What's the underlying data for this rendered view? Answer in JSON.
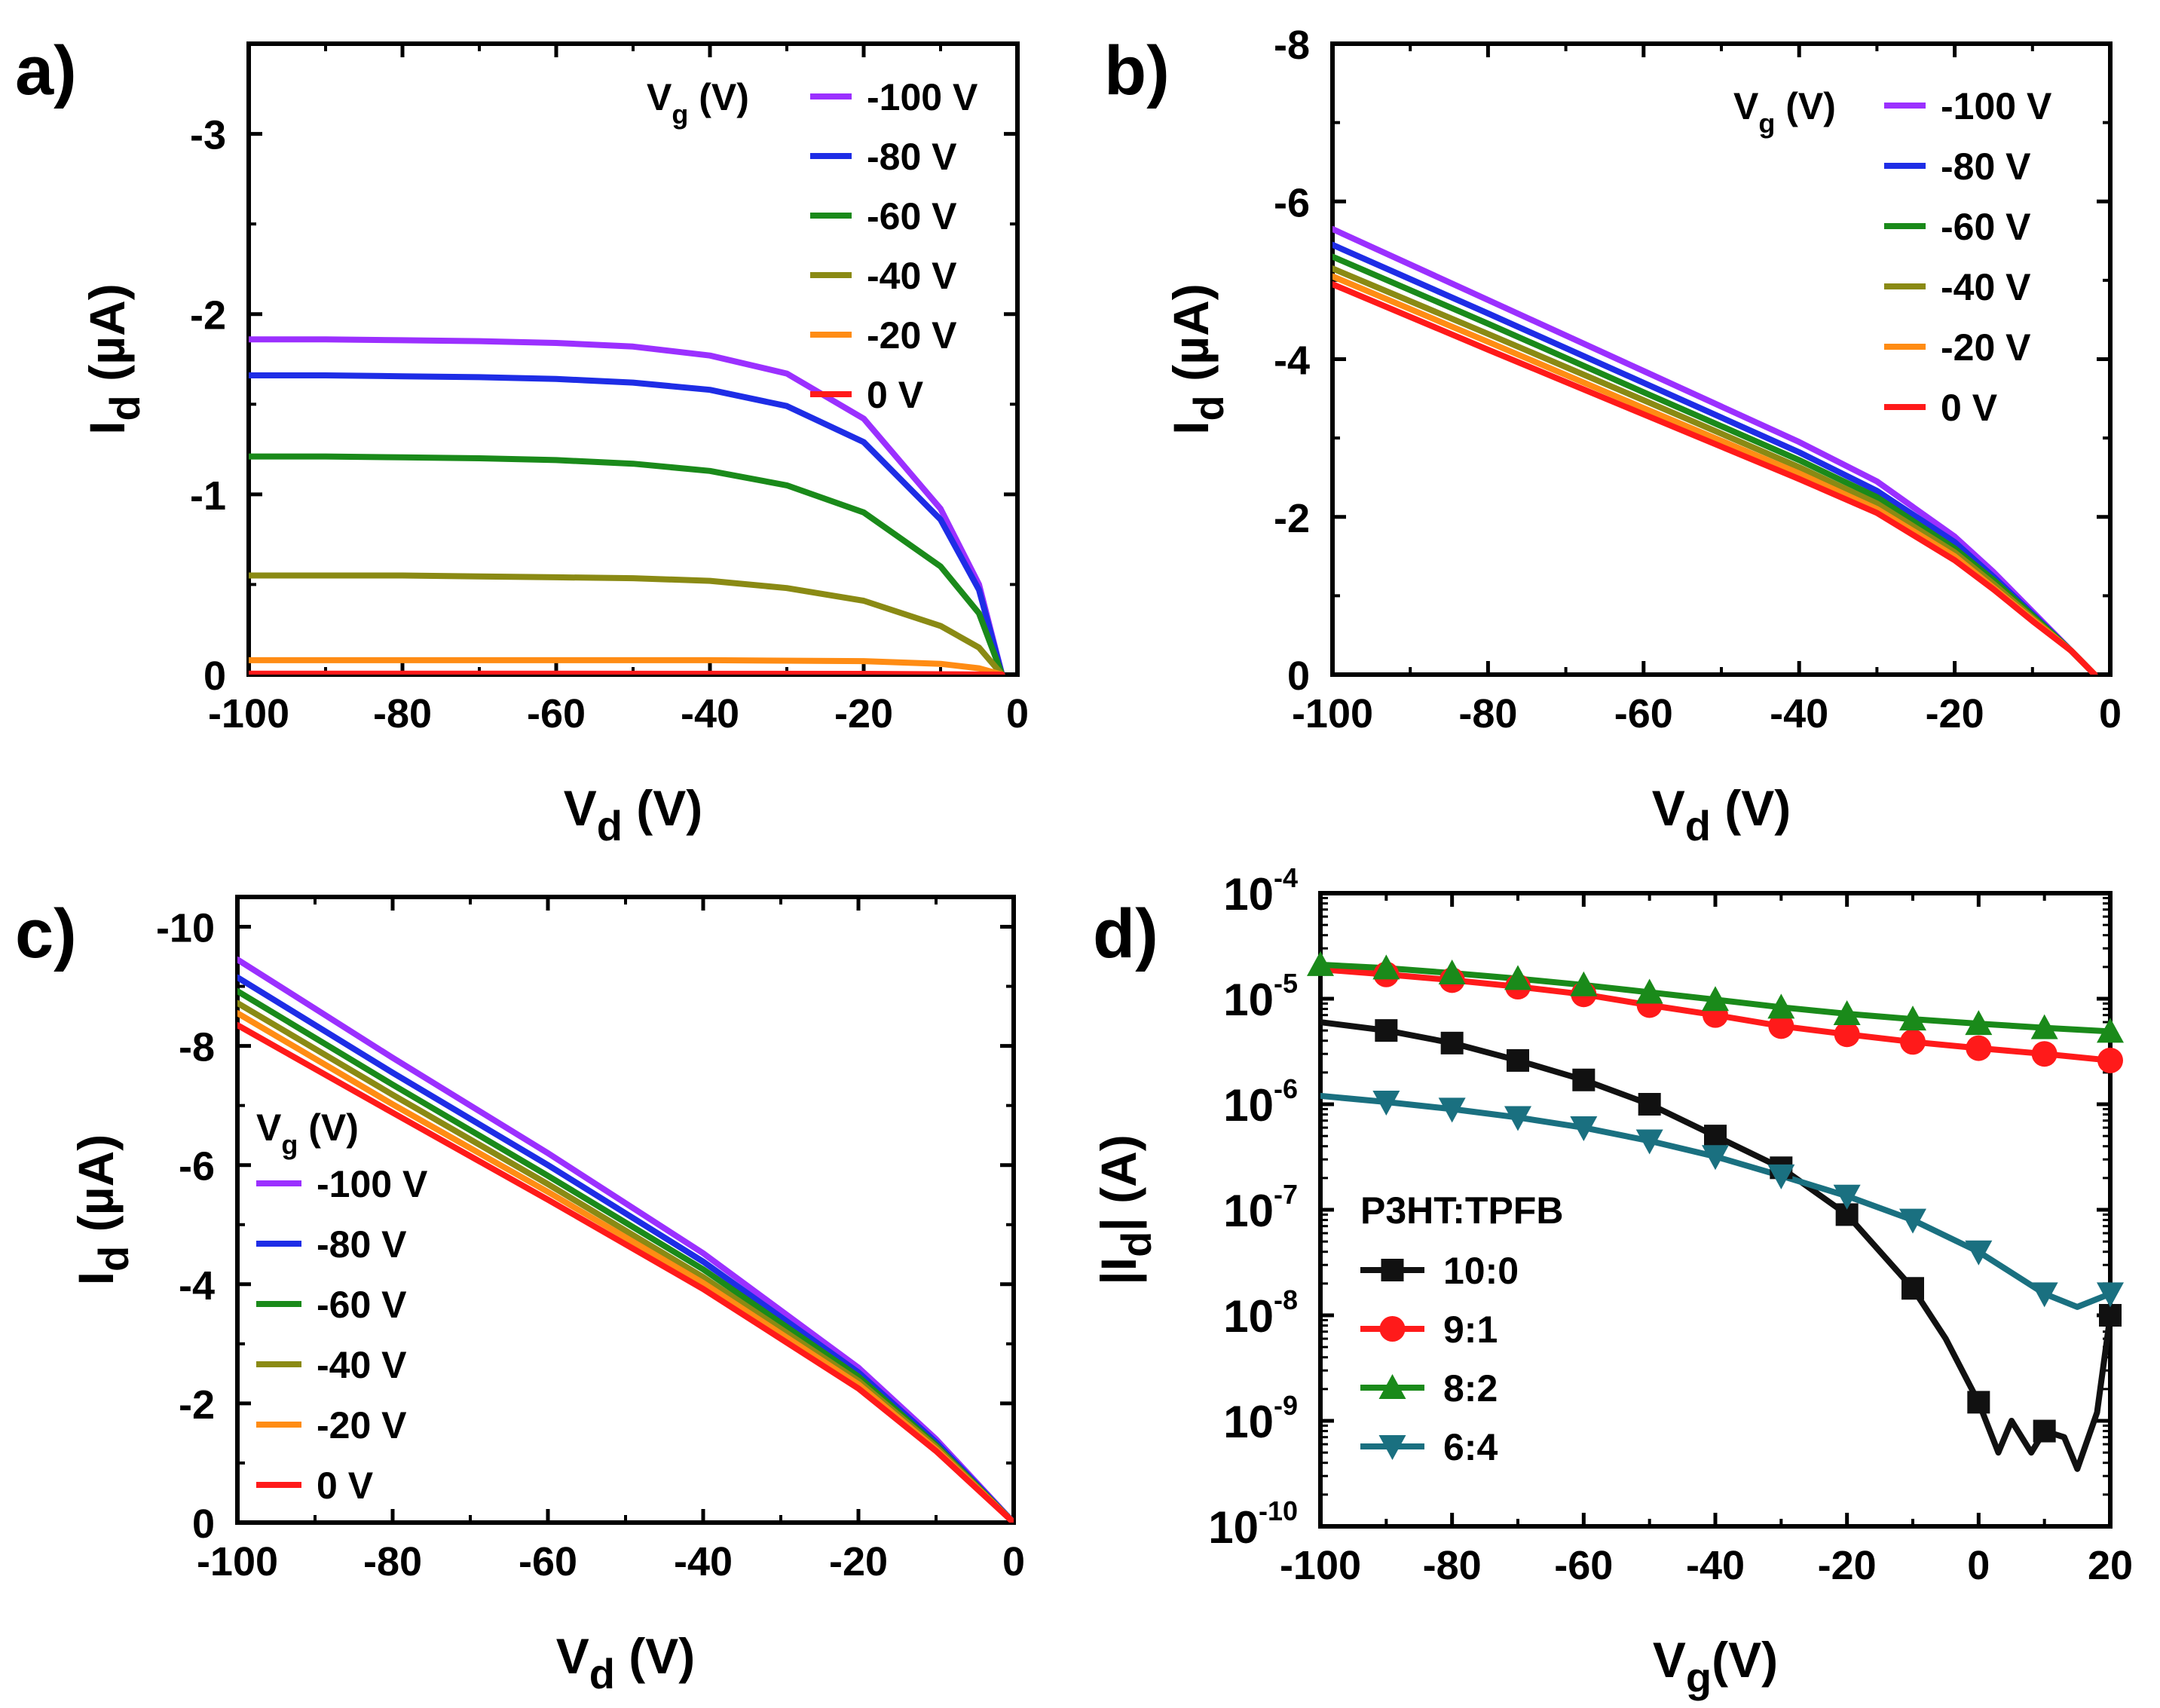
{
  "chart_data": [
    {
      "panel": "a)",
      "type": "line",
      "xlabel": {
        "main": "V",
        "sub": "d",
        "unit": " (V)"
      },
      "ylabel": {
        "main": "I",
        "sub": "d",
        "unit": " (µA)"
      },
      "xlim": [
        -100,
        0
      ],
      "ylim": [
        0,
        -3.5
      ],
      "xticks": [
        -100,
        -80,
        -60,
        -40,
        -20,
        0
      ],
      "xtick_labels": [
        "-100",
        "-80",
        "-60",
        "-40",
        "-20",
        "0"
      ],
      "yticks": [
        0,
        -1,
        -2,
        -3
      ],
      "ytick_labels": [
        "0",
        "-1",
        "-2",
        "-3"
      ],
      "legend": {
        "title_main": "V",
        "title_sub": "g",
        "title_unit": " (V)",
        "position": "top-right"
      },
      "series": [
        {
          "name": "-100 V",
          "color": "#9b30ff",
          "x": [
            -100,
            -90,
            -80,
            -70,
            -60,
            -50,
            -40,
            -30,
            -20,
            -10,
            -5,
            -2
          ],
          "y": [
            -1.86,
            -1.86,
            -1.855,
            -1.85,
            -1.84,
            -1.82,
            -1.77,
            -1.67,
            -1.42,
            -0.92,
            -0.5,
            0
          ]
        },
        {
          "name": "-80 V",
          "color": "#1e2de6",
          "x": [
            -100,
            -90,
            -80,
            -70,
            -60,
            -50,
            -40,
            -30,
            -20,
            -10,
            -5,
            -2
          ],
          "y": [
            -1.66,
            -1.66,
            -1.655,
            -1.65,
            -1.64,
            -1.62,
            -1.58,
            -1.49,
            -1.29,
            -0.86,
            -0.47,
            0
          ]
        },
        {
          "name": "-60 V",
          "color": "#1a8a1a",
          "x": [
            -100,
            -90,
            -80,
            -70,
            -60,
            -50,
            -40,
            -30,
            -20,
            -10,
            -5,
            -2
          ],
          "y": [
            -1.21,
            -1.21,
            -1.205,
            -1.2,
            -1.19,
            -1.17,
            -1.13,
            -1.05,
            -0.9,
            -0.6,
            -0.34,
            0
          ]
        },
        {
          "name": "-40 V",
          "color": "#8a8a14",
          "x": [
            -100,
            -90,
            -80,
            -70,
            -60,
            -50,
            -40,
            -30,
            -20,
            -10,
            -5,
            -2
          ],
          "y": [
            -0.55,
            -0.55,
            -0.55,
            -0.545,
            -0.54,
            -0.535,
            -0.52,
            -0.48,
            -0.41,
            -0.27,
            -0.15,
            0
          ]
        },
        {
          "name": "-20 V",
          "color": "#ff8c14",
          "x": [
            -100,
            -80,
            -60,
            -40,
            -20,
            -10,
            -5,
            -2
          ],
          "y": [
            -0.08,
            -0.08,
            -0.08,
            -0.08,
            -0.075,
            -0.06,
            -0.035,
            0
          ]
        },
        {
          "name": "0 V",
          "color": "#ff1a1a",
          "x": [
            -100,
            -60,
            -20,
            -2
          ],
          "y": [
            -0.005,
            -0.005,
            -0.004,
            0
          ]
        }
      ]
    },
    {
      "panel": "b)",
      "type": "line",
      "xlabel": {
        "main": "V",
        "sub": "d",
        "unit": " (V)"
      },
      "ylabel": {
        "main": "I",
        "sub": "d",
        "unit": " (µA)"
      },
      "xlim": [
        -100,
        0
      ],
      "ylim": [
        0,
        -8
      ],
      "xticks": [
        -100,
        -80,
        -60,
        -40,
        -20,
        0
      ],
      "xtick_labels": [
        "-100",
        "-80",
        "-60",
        "-40",
        "-20",
        "0"
      ],
      "yticks": [
        0,
        -2,
        -4,
        -6,
        -8
      ],
      "ytick_labels": [
        "0",
        "-2",
        "-4",
        "-6",
        "-8"
      ],
      "legend": {
        "title_main": "V",
        "title_sub": "g",
        "title_unit": " (V)",
        "position": "top-right"
      },
      "series": [
        {
          "name": "-100 V",
          "color": "#9b30ff",
          "x": [
            -100,
            -80,
            -60,
            -40,
            -30,
            -20,
            -15,
            -10,
            -5,
            -2
          ],
          "y": [
            -5.65,
            -4.75,
            -3.85,
            -2.95,
            -2.45,
            -1.75,
            -1.3,
            -0.8,
            -0.3,
            0
          ]
        },
        {
          "name": "-80 V",
          "color": "#1e2de6",
          "x": [
            -100,
            -80,
            -60,
            -40,
            -30,
            -20,
            -15,
            -10,
            -5,
            -2
          ],
          "y": [
            -5.45,
            -4.58,
            -3.7,
            -2.82,
            -2.33,
            -1.68,
            -1.24,
            -0.77,
            -0.3,
            0
          ]
        },
        {
          "name": "-60 V",
          "color": "#1a8a1a",
          "x": [
            -100,
            -80,
            -60,
            -40,
            -30,
            -20,
            -15,
            -10,
            -5,
            -2
          ],
          "y": [
            -5.3,
            -4.45,
            -3.58,
            -2.72,
            -2.25,
            -1.6,
            -1.2,
            -0.75,
            -0.3,
            0
          ]
        },
        {
          "name": "-40 V",
          "color": "#8a8a14",
          "x": [
            -100,
            -80,
            -60,
            -40,
            -30,
            -20,
            -15,
            -10,
            -5,
            -2
          ],
          "y": [
            -5.15,
            -4.32,
            -3.48,
            -2.63,
            -2.17,
            -1.55,
            -1.15,
            -0.72,
            -0.3,
            0
          ]
        },
        {
          "name": "-20 V",
          "color": "#ff8c14",
          "x": [
            -100,
            -80,
            -60,
            -40,
            -30,
            -20,
            -15,
            -10,
            -5,
            -2
          ],
          "y": [
            -5.05,
            -4.22,
            -3.38,
            -2.55,
            -2.1,
            -1.5,
            -1.1,
            -0.7,
            -0.3,
            0
          ]
        },
        {
          "name": "0 V",
          "color": "#ff1a1a",
          "x": [
            -100,
            -80,
            -60,
            -40,
            -30,
            -20,
            -15,
            -10,
            -5,
            -2
          ],
          "y": [
            -4.95,
            -4.12,
            -3.3,
            -2.48,
            -2.05,
            -1.45,
            -1.08,
            -0.68,
            -0.3,
            0
          ]
        }
      ]
    },
    {
      "panel": "c)",
      "type": "line",
      "xlabel": {
        "main": "V",
        "sub": "d",
        "unit": " (V)"
      },
      "ylabel": {
        "main": "I",
        "sub": "d",
        "unit": " (µA)"
      },
      "xlim": [
        -100,
        0
      ],
      "ylim": [
        0,
        -10.5
      ],
      "xticks": [
        -100,
        -80,
        -60,
        -40,
        -20,
        0
      ],
      "xtick_labels": [
        "-100",
        "-80",
        "-60",
        "-40",
        "-20",
        "0"
      ],
      "yticks": [
        0,
        -2,
        -4,
        -6,
        -8,
        -10
      ],
      "ytick_labels": [
        "0",
        "-2",
        "-4",
        "-6",
        "-8",
        "-10"
      ],
      "legend": {
        "title_main": "V",
        "title_sub": "g",
        "title_unit": " (V)",
        "position": "middle-left"
      },
      "series": [
        {
          "name": "-100 V",
          "color": "#9b30ff",
          "x": [
            -100,
            -80,
            -60,
            -40,
            -20,
            -10,
            0
          ],
          "y": [
            -9.45,
            -7.8,
            -6.2,
            -4.52,
            -2.6,
            -1.4,
            0
          ]
        },
        {
          "name": "-80 V",
          "color": "#1e2de6",
          "x": [
            -100,
            -80,
            -60,
            -40,
            -20,
            -10,
            0
          ],
          "y": [
            -9.15,
            -7.55,
            -6.0,
            -4.38,
            -2.52,
            -1.35,
            0
          ]
        },
        {
          "name": "-60 V",
          "color": "#1a8a1a",
          "x": [
            -100,
            -80,
            -60,
            -40,
            -20,
            -10,
            0
          ],
          "y": [
            -8.92,
            -7.35,
            -5.82,
            -4.25,
            -2.45,
            -1.3,
            0
          ]
        },
        {
          "name": "-40 V",
          "color": "#8a8a14",
          "x": [
            -100,
            -80,
            -60,
            -40,
            -20,
            -10,
            0
          ],
          "y": [
            -8.72,
            -7.18,
            -5.68,
            -4.12,
            -2.38,
            -1.27,
            0
          ]
        },
        {
          "name": "-20 V",
          "color": "#ff8c14",
          "x": [
            -100,
            -80,
            -60,
            -40,
            -20,
            -10,
            0
          ],
          "y": [
            -8.55,
            -7.02,
            -5.55,
            -4.02,
            -2.32,
            -1.23,
            0
          ]
        },
        {
          "name": "0 V",
          "color": "#ff1a1a",
          "x": [
            -100,
            -80,
            -60,
            -40,
            -20,
            -10,
            0
          ],
          "y": [
            -8.35,
            -6.88,
            -5.42,
            -3.92,
            -2.25,
            -1.2,
            0
          ]
        }
      ]
    },
    {
      "panel": "d)",
      "type": "line",
      "scale_y": "log",
      "xlabel": {
        "main": "V",
        "sub": "g",
        "unit": "(V)"
      },
      "ylabel": {
        "main": "|I",
        "sub": "d",
        "unit": "| (A)"
      },
      "xlim": [
        -100,
        20
      ],
      "ylim_exp": [
        -10,
        -4
      ],
      "xticks": [
        -100,
        -80,
        -60,
        -40,
        -20,
        0,
        20
      ],
      "xtick_labels": [
        "-100",
        "-80",
        "-60",
        "-40",
        "-20",
        "0",
        "20"
      ],
      "yticks_exp": [
        -10,
        -9,
        -8,
        -7,
        -6,
        -5,
        -4
      ],
      "ytick_base": "10",
      "ytick_exponents": [
        "-10",
        "-9",
        "-8",
        "-7",
        "-6",
        "-5",
        "-4"
      ],
      "legend": {
        "title": "P3HT:TPFB",
        "position": "bottom-left"
      },
      "series": [
        {
          "name": "10:0",
          "color": "#111111",
          "marker": "square",
          "x": [
            -100,
            -90,
            -80,
            -70,
            -60,
            -50,
            -40,
            -30,
            -20,
            -10,
            -5,
            0,
            3,
            5,
            8,
            10,
            13,
            15,
            18,
            20
          ],
          "y": [
            6e-06,
            5e-06,
            3.8e-06,
            2.6e-06,
            1.7e-06,
            1e-06,
            5e-07,
            2.5e-07,
            9e-08,
            1.8e-08,
            6e-09,
            1.5e-09,
            5e-10,
            1e-09,
            5e-10,
            8e-10,
            7e-10,
            3.5e-10,
            1.2e-09,
            1e-08
          ],
          "marker_x": [
            -90,
            -80,
            -70,
            -60,
            -50,
            -40,
            -30,
            -20,
            -10,
            0,
            10,
            20
          ],
          "marker_y": [
            5e-06,
            3.8e-06,
            2.6e-06,
            1.7e-06,
            1e-06,
            5e-07,
            2.5e-07,
            9e-08,
            1.8e-08,
            1.5e-09,
            8e-10,
            1e-08
          ]
        },
        {
          "name": "9:1",
          "color": "#ff1a1a",
          "marker": "circle",
          "x": [
            -100,
            -90,
            -80,
            -70,
            -60,
            -50,
            -40,
            -30,
            -20,
            -10,
            0,
            10,
            20
          ],
          "y": [
            1.9e-05,
            1.7e-05,
            1.5e-05,
            1.3e-05,
            1.1e-05,
            8.7e-06,
            7e-06,
            5.5e-06,
            4.6e-06,
            3.9e-06,
            3.4e-06,
            3e-06,
            2.6e-06
          ],
          "marker_x": [
            -90,
            -80,
            -70,
            -60,
            -50,
            -40,
            -30,
            -20,
            -10,
            0,
            10,
            20
          ],
          "marker_y": [
            1.7e-05,
            1.5e-05,
            1.3e-05,
            1.1e-05,
            8.7e-06,
            7e-06,
            5.5e-06,
            4.6e-06,
            3.9e-06,
            3.4e-06,
            3e-06,
            2.6e-06
          ]
        },
        {
          "name": "8:2",
          "color": "#1a8a1a",
          "marker": "triangle-up",
          "x": [
            -100,
            -90,
            -80,
            -70,
            -60,
            -50,
            -40,
            -30,
            -20,
            -10,
            0,
            10,
            20
          ],
          "y": [
            2.1e-05,
            1.95e-05,
            1.75e-05,
            1.55e-05,
            1.35e-05,
            1.15e-05,
            9.8e-06,
            8.3e-06,
            7.2e-06,
            6.4e-06,
            5.8e-06,
            5.3e-06,
            4.9e-06
          ],
          "marker_x": [
            -100,
            -90,
            -80,
            -70,
            -60,
            -50,
            -40,
            -30,
            -20,
            -10,
            0,
            10,
            20
          ],
          "marker_y": [
            2.1e-05,
            1.95e-05,
            1.75e-05,
            1.55e-05,
            1.35e-05,
            1.15e-05,
            9.8e-06,
            8.3e-06,
            7.2e-06,
            6.4e-06,
            5.8e-06,
            5.3e-06,
            4.9e-06
          ]
        },
        {
          "name": "6:4",
          "color": "#1a7080",
          "marker": "triangle-down",
          "x": [
            -100,
            -90,
            -80,
            -70,
            -60,
            -50,
            -40,
            -30,
            -20,
            -10,
            0,
            10,
            15,
            20
          ],
          "y": [
            1.2e-06,
            1.05e-06,
            9e-07,
            7.5e-07,
            6e-07,
            4.5e-07,
            3.2e-07,
            2.1e-07,
            1.35e-07,
            8e-08,
            4e-08,
            1.6e-08,
            1.2e-08,
            1.6e-08
          ],
          "marker_x": [
            -90,
            -80,
            -70,
            -60,
            -50,
            -40,
            -30,
            -20,
            -10,
            0,
            10,
            20
          ],
          "marker_y": [
            1.05e-06,
            9e-07,
            7.5e-07,
            6e-07,
            4.5e-07,
            3.2e-07,
            2.1e-07,
            1.35e-07,
            8e-08,
            4e-08,
            1.6e-08,
            1.6e-08
          ]
        }
      ]
    }
  ]
}
